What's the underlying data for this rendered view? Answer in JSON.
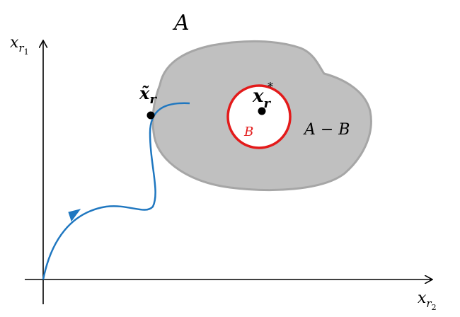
{
  "set_a": {
    "label": "A",
    "fill": "#c0c0c0",
    "stroke": "#a6a6a6"
  },
  "set_b": {
    "label": "B",
    "stroke": "#e31a1a"
  },
  "difference": {
    "label": "A − B"
  },
  "target_point": {
    "symbol": "x",
    "subscript": "r",
    "superscript": "*"
  },
  "tilde_point": {
    "symbol": "x̃",
    "subscript": "r"
  },
  "axes": {
    "vertical": {
      "symbol": "x",
      "subscript": "r",
      "sub_index": "1"
    },
    "horizontal": {
      "symbol": "x",
      "subscript": "r",
      "sub_index": "2"
    }
  },
  "trajectory": {
    "color": "#1f77c0"
  }
}
